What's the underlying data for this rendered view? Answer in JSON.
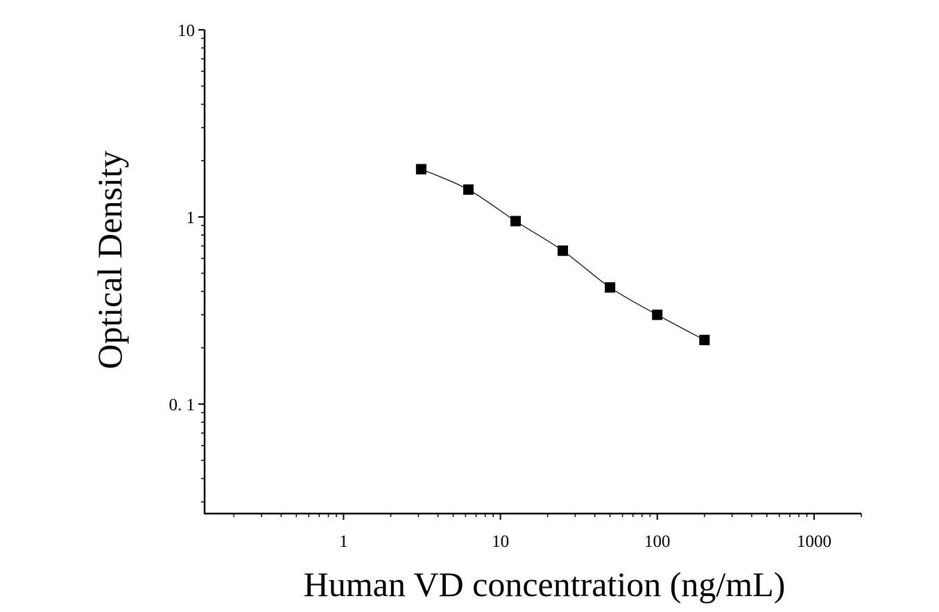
{
  "chart_data": {
    "type": "scatter",
    "title": "",
    "xlabel": "Human VD concentration (ng/mL)",
    "ylabel": "Optical Density",
    "x_scale": "log",
    "y_scale": "log",
    "xlim": [
      0.13,
      2000
    ],
    "ylim": [
      0.026,
      10
    ],
    "x_ticks": [
      {
        "value": 1,
        "label": "1"
      },
      {
        "value": 10,
        "label": "10"
      },
      {
        "value": 100,
        "label": "100"
      },
      {
        "value": 1000,
        "label": "1000"
      }
    ],
    "y_ticks": [
      {
        "value": 0.1,
        "label": "0. 1"
      },
      {
        "value": 1,
        "label": "1"
      },
      {
        "value": 10,
        "label": "10"
      }
    ],
    "grid": false,
    "legend": "none",
    "marker": "square",
    "fit_line": true,
    "colors": {
      "marker": "#000000",
      "line": "#000000",
      "axis": "#000000"
    },
    "series": [
      {
        "x": [
          3.125,
          6.25,
          12.5,
          25,
          50,
          100,
          200
        ],
        "y": [
          1.8,
          1.4,
          0.95,
          0.66,
          0.42,
          0.3,
          0.22
        ]
      }
    ]
  }
}
